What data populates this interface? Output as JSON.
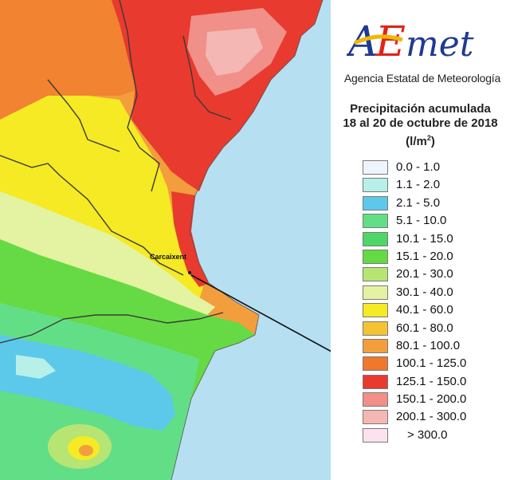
{
  "logo": {
    "text": "AEmet",
    "agency": "Agencia Estatal de Meteorología"
  },
  "title": {
    "line1": "Precipitación acumulada",
    "line2": "18 al 20 de octubre de 2018",
    "unit": "(l/m",
    "unit_sup": "2",
    "unit_close": ")"
  },
  "map": {
    "city": "Carcaixent"
  },
  "legend": [
    {
      "label": "0.0 - 1.0",
      "color": "#eef4fb"
    },
    {
      "label": "1.1 - 2.0",
      "color": "#b7efe9"
    },
    {
      "label": "2.1 - 5.0",
      "color": "#5cc9ea"
    },
    {
      "label": "5.1 - 10.0",
      "color": "#62df86"
    },
    {
      "label": "10.1 - 15.0",
      "color": "#4ed668"
    },
    {
      "label": "15.1 - 20.0",
      "color": "#66da44"
    },
    {
      "label": "20.1 - 30.0",
      "color": "#b6e574"
    },
    {
      "label": "30.1 - 40.0",
      "color": "#e4f3a1"
    },
    {
      "label": "40.1 - 60.0",
      "color": "#f5ea24"
    },
    {
      "label": "60.1 - 80.0",
      "color": "#f4c334"
    },
    {
      "label": "80.1 - 100.0",
      "color": "#f39e3c"
    },
    {
      "label": "100.1 - 125.0",
      "color": "#f0772c"
    },
    {
      "label": "125.1 - 150.0",
      "color": "#e83a2e"
    },
    {
      "label": "150.1 - 200.0",
      "color": "#f09088"
    },
    {
      "label": "200.1 - 300.0",
      "color": "#f5b7b3"
    },
    {
      "label": "> 300.0",
      "color": "#fbe2ee"
    }
  ]
}
